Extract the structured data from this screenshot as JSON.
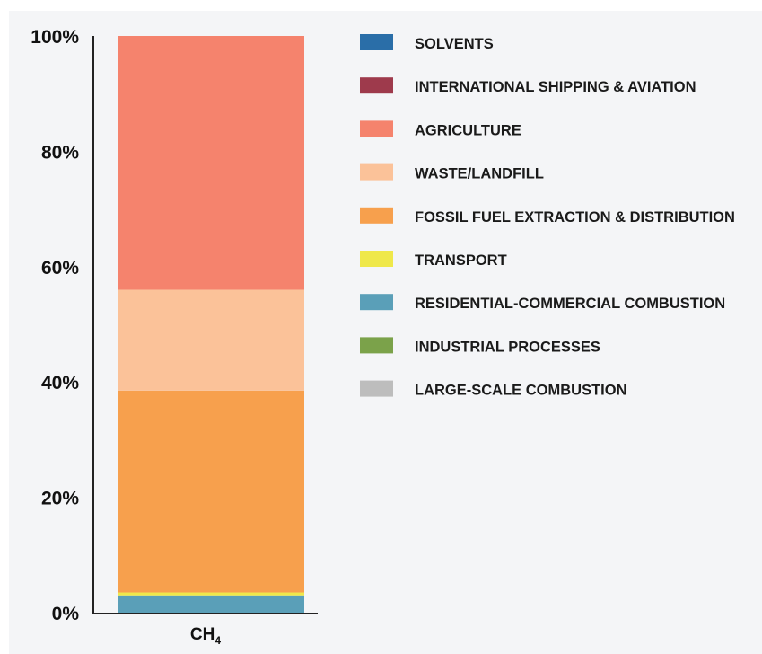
{
  "chart_data": {
    "type": "bar",
    "stacked": true,
    "categories": [
      "CH"
    ],
    "category_subscript": "4",
    "ylim": [
      0,
      100
    ],
    "y_ticks": [
      "0%",
      "20%",
      "40%",
      "60%",
      "80%",
      "100%"
    ],
    "y_tick_values": [
      0,
      20,
      40,
      60,
      80,
      100
    ],
    "grid": false,
    "legend_placement": "right",
    "series": [
      {
        "name": "SOLVENTS",
        "color": "#2a6ea8",
        "values": [
          0
        ]
      },
      {
        "name": "INTERNATIONAL SHIPPING & AVIATION",
        "color": "#9e3a4c",
        "values": [
          0
        ]
      },
      {
        "name": "AGRICULTURE",
        "color": "#f5836d",
        "values": [
          44
        ]
      },
      {
        "name": "WASTE/LANDFILL",
        "color": "#fbc299",
        "values": [
          17.5
        ]
      },
      {
        "name": "FOSSIL FUEL EXTRACTION & DISTRIBUTION",
        "color": "#f7a04d",
        "values": [
          35
        ]
      },
      {
        "name": "TRANSPORT",
        "color": "#efe84a",
        "values": [
          0.5
        ]
      },
      {
        "name": "RESIDENTIAL-COMMERCIAL COMBUSTION",
        "color": "#5a9fb8",
        "values": [
          3
        ]
      },
      {
        "name": "INDUSTRIAL PROCESSES",
        "color": "#7ba24a",
        "values": [
          0
        ]
      },
      {
        "name": "LARGE-SCALE COMBUSTION",
        "color": "#bdbdbd",
        "values": [
          0
        ]
      }
    ],
    "stack_order_bottom_to_top": [
      "LARGE-SCALE COMBUSTION",
      "INDUSTRIAL PROCESSES",
      "RESIDENTIAL-COMMERCIAL COMBUSTION",
      "TRANSPORT",
      "FOSSIL FUEL EXTRACTION & DISTRIBUTION",
      "WASTE/LANDFILL",
      "AGRICULTURE",
      "INTERNATIONAL SHIPPING & AVIATION",
      "SOLVENTS"
    ]
  }
}
